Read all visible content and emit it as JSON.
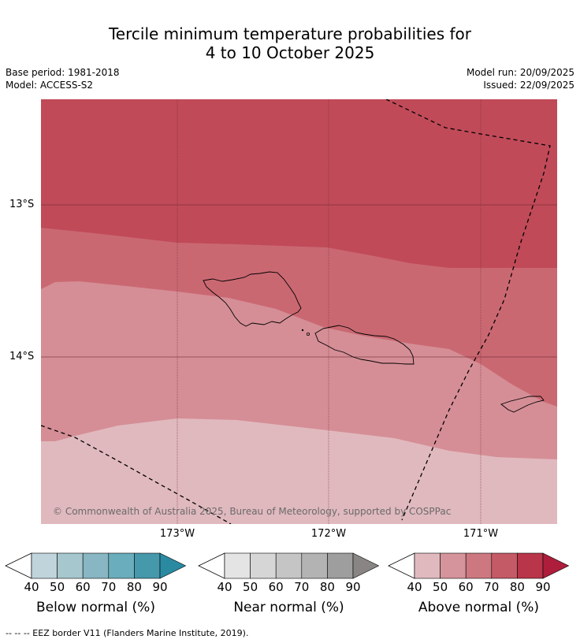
{
  "title": {
    "line1": "Tercile minimum temperature probabilities for",
    "line2": "4 to 10 October 2025"
  },
  "meta": {
    "base_period": "Base period: 1981-2018",
    "model": "Model: ACCESS-S2",
    "model_run": "Model run: 20/09/2025",
    "issued": "Issued: 22/09/2025"
  },
  "map": {
    "lat_labels": [
      "13°S",
      "14°S"
    ],
    "lon_labels": [
      "173°W",
      "172°W",
      "171°W"
    ],
    "copyright": "© Commonwealth of Australia 2025, Bureau of Meteorology, supported by COSPPac",
    "probability_bands": [
      {
        "category": "Above normal",
        "range": "40-50",
        "color": "#e0b9be"
      },
      {
        "category": "Above normal",
        "range": "50-60",
        "color": "#d58e96"
      },
      {
        "category": "Above normal",
        "range": "60-70",
        "color": "#ca6872"
      },
      {
        "category": "Above normal",
        "range": "70-80",
        "color": "#c04a58"
      }
    ]
  },
  "colorbars": [
    {
      "label": "Below normal (%)",
      "ticks": [
        "40",
        "50",
        "60",
        "70",
        "80",
        "90"
      ],
      "colors": [
        "#bfd4db",
        "#a5c7cd",
        "#88b6c2",
        "#6aadbc",
        "#4698ab",
        "#2a8aa1"
      ]
    },
    {
      "label": "Near normal (%)",
      "ticks": [
        "40",
        "50",
        "60",
        "70",
        "80",
        "90"
      ],
      "colors": [
        "#e4e4e4",
        "#d6d6d6",
        "#c5c5c5",
        "#b3b3b3",
        "#9e9e9e",
        "#8a8585"
      ]
    },
    {
      "label": "Above normal (%)",
      "ticks": [
        "40",
        "50",
        "60",
        "70",
        "80",
        "90"
      ],
      "colors": [
        "#e0b9be",
        "#d5939b",
        "#cd7880",
        "#c45a66",
        "#b93549",
        "#ae1d3c"
      ]
    }
  ],
  "footer": "-- -- -- EEZ border V11 (Flanders Marine Institute, 2019)."
}
